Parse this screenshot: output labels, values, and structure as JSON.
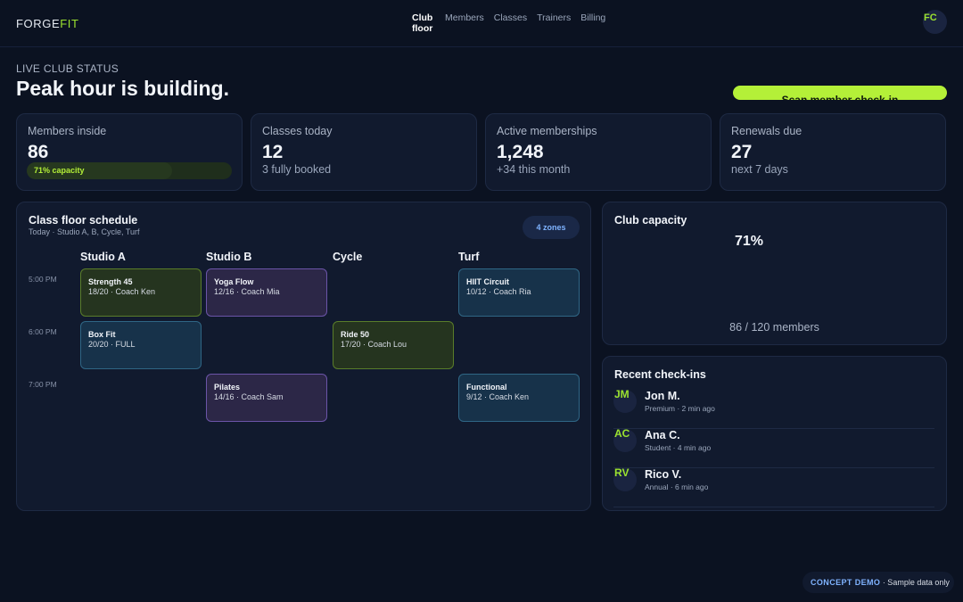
{
  "brand": {
    "part1": "FORGE",
    "part2": "FIT"
  },
  "nav": {
    "items": [
      "Club floor",
      "Members",
      "Classes",
      "Trainers",
      "Billing"
    ],
    "active": "Club floor"
  },
  "user": {
    "initials": "FC"
  },
  "hero": {
    "eyebrow": "LIVE CLUB STATUS",
    "headline": "Peak hour is building.",
    "cta_label": "Scan member check-in"
  },
  "stats": [
    {
      "label": "Members inside",
      "value": "86",
      "sub": "71% capacity",
      "capacity_fraction": 0.71
    },
    {
      "label": "Classes today",
      "value": "12",
      "sub": "3 fully booked"
    },
    {
      "label": "Active memberships",
      "value": "1,248",
      "sub": "+34 this month"
    },
    {
      "label": "Renewals due",
      "value": "27",
      "sub": "next 7 days"
    }
  ],
  "schedule": {
    "title": "Class floor schedule",
    "subtitle": "Today · Studio A, B, Cycle, Turf",
    "zones_badge": "4 zones",
    "columns": [
      "Studio A",
      "Studio B",
      "Cycle",
      "Turf"
    ],
    "times": [
      "5:00 PM",
      "6:00 PM",
      "7:00 PM"
    ],
    "classes": [
      {
        "name": "Strength 45",
        "detail": "18/20 · Coach Ken"
      },
      {
        "name": "Yoga Flow",
        "detail": "12/16 · Coach Mia"
      },
      {
        "name": "HIIT Circuit",
        "detail": "10/12 · Coach Ria"
      },
      {
        "name": "Box Fit",
        "detail": "20/20 · FULL"
      },
      {
        "name": "Ride 50",
        "detail": "17/20 · Coach Lou"
      },
      {
        "name": "Pilates",
        "detail": "14/16 · Coach Sam"
      },
      {
        "name": "Functional",
        "detail": "9/12 · Coach Ken"
      }
    ]
  },
  "capacity": {
    "title": "Club capacity",
    "percent": "71%",
    "members_text": "86 / 120 members"
  },
  "checkins": {
    "title": "Recent check-ins",
    "items": [
      {
        "initials": "JM",
        "name": "Jon M.",
        "meta": "Premium · 2 min ago"
      },
      {
        "initials": "AC",
        "name": "Ana C.",
        "meta": "Student · 4 min ago"
      },
      {
        "initials": "RV",
        "name": "Rico V.",
        "meta": "Annual · 6 min ago"
      }
    ]
  },
  "footer": {
    "badge": "CONCEPT DEMO",
    "note": " · Sample data only"
  },
  "colors": {
    "background": "#0b1221",
    "card": "#111a2e",
    "accent_lime": "#b4f038",
    "accent_blue": "#7fb3ff",
    "class_green": "#25341f",
    "class_purple": "#2c2747",
    "class_teal": "#17324a"
  }
}
